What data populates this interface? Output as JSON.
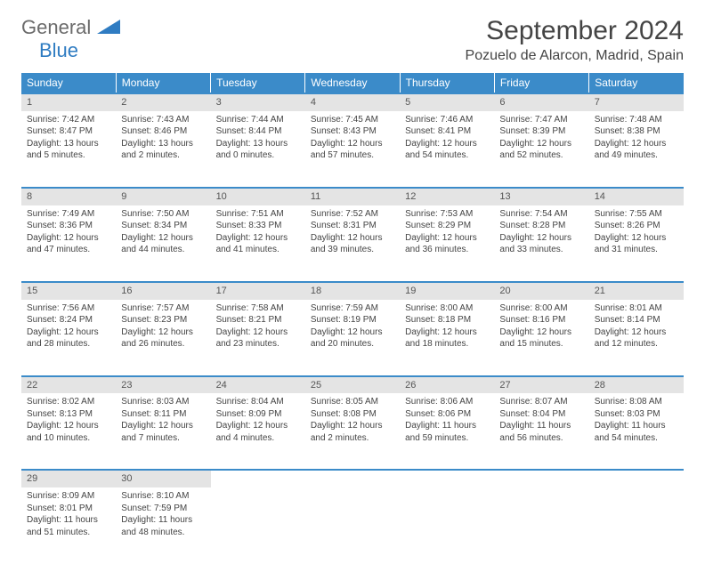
{
  "logo": {
    "word1": "General",
    "word2": "Blue"
  },
  "title": "September 2024",
  "location": "Pozuelo de Alarcon, Madrid, Spain",
  "daysOfWeek": [
    "Sunday",
    "Monday",
    "Tuesday",
    "Wednesday",
    "Thursday",
    "Friday",
    "Saturday"
  ],
  "colors": {
    "headerBg": "#3b8bc9",
    "dayNumBg": "#e4e4e4",
    "logoGray": "#6b6b6b",
    "logoBlue": "#2f7cc2"
  },
  "weeks": [
    [
      {
        "n": "1",
        "sr": "Sunrise: 7:42 AM",
        "ss": "Sunset: 8:47 PM",
        "d1": "Daylight: 13 hours",
        "d2": "and 5 minutes."
      },
      {
        "n": "2",
        "sr": "Sunrise: 7:43 AM",
        "ss": "Sunset: 8:46 PM",
        "d1": "Daylight: 13 hours",
        "d2": "and 2 minutes."
      },
      {
        "n": "3",
        "sr": "Sunrise: 7:44 AM",
        "ss": "Sunset: 8:44 PM",
        "d1": "Daylight: 13 hours",
        "d2": "and 0 minutes."
      },
      {
        "n": "4",
        "sr": "Sunrise: 7:45 AM",
        "ss": "Sunset: 8:43 PM",
        "d1": "Daylight: 12 hours",
        "d2": "and 57 minutes."
      },
      {
        "n": "5",
        "sr": "Sunrise: 7:46 AM",
        "ss": "Sunset: 8:41 PM",
        "d1": "Daylight: 12 hours",
        "d2": "and 54 minutes."
      },
      {
        "n": "6",
        "sr": "Sunrise: 7:47 AM",
        "ss": "Sunset: 8:39 PM",
        "d1": "Daylight: 12 hours",
        "d2": "and 52 minutes."
      },
      {
        "n": "7",
        "sr": "Sunrise: 7:48 AM",
        "ss": "Sunset: 8:38 PM",
        "d1": "Daylight: 12 hours",
        "d2": "and 49 minutes."
      }
    ],
    [
      {
        "n": "8",
        "sr": "Sunrise: 7:49 AM",
        "ss": "Sunset: 8:36 PM",
        "d1": "Daylight: 12 hours",
        "d2": "and 47 minutes."
      },
      {
        "n": "9",
        "sr": "Sunrise: 7:50 AM",
        "ss": "Sunset: 8:34 PM",
        "d1": "Daylight: 12 hours",
        "d2": "and 44 minutes."
      },
      {
        "n": "10",
        "sr": "Sunrise: 7:51 AM",
        "ss": "Sunset: 8:33 PM",
        "d1": "Daylight: 12 hours",
        "d2": "and 41 minutes."
      },
      {
        "n": "11",
        "sr": "Sunrise: 7:52 AM",
        "ss": "Sunset: 8:31 PM",
        "d1": "Daylight: 12 hours",
        "d2": "and 39 minutes."
      },
      {
        "n": "12",
        "sr": "Sunrise: 7:53 AM",
        "ss": "Sunset: 8:29 PM",
        "d1": "Daylight: 12 hours",
        "d2": "and 36 minutes."
      },
      {
        "n": "13",
        "sr": "Sunrise: 7:54 AM",
        "ss": "Sunset: 8:28 PM",
        "d1": "Daylight: 12 hours",
        "d2": "and 33 minutes."
      },
      {
        "n": "14",
        "sr": "Sunrise: 7:55 AM",
        "ss": "Sunset: 8:26 PM",
        "d1": "Daylight: 12 hours",
        "d2": "and 31 minutes."
      }
    ],
    [
      {
        "n": "15",
        "sr": "Sunrise: 7:56 AM",
        "ss": "Sunset: 8:24 PM",
        "d1": "Daylight: 12 hours",
        "d2": "and 28 minutes."
      },
      {
        "n": "16",
        "sr": "Sunrise: 7:57 AM",
        "ss": "Sunset: 8:23 PM",
        "d1": "Daylight: 12 hours",
        "d2": "and 26 minutes."
      },
      {
        "n": "17",
        "sr": "Sunrise: 7:58 AM",
        "ss": "Sunset: 8:21 PM",
        "d1": "Daylight: 12 hours",
        "d2": "and 23 minutes."
      },
      {
        "n": "18",
        "sr": "Sunrise: 7:59 AM",
        "ss": "Sunset: 8:19 PM",
        "d1": "Daylight: 12 hours",
        "d2": "and 20 minutes."
      },
      {
        "n": "19",
        "sr": "Sunrise: 8:00 AM",
        "ss": "Sunset: 8:18 PM",
        "d1": "Daylight: 12 hours",
        "d2": "and 18 minutes."
      },
      {
        "n": "20",
        "sr": "Sunrise: 8:00 AM",
        "ss": "Sunset: 8:16 PM",
        "d1": "Daylight: 12 hours",
        "d2": "and 15 minutes."
      },
      {
        "n": "21",
        "sr": "Sunrise: 8:01 AM",
        "ss": "Sunset: 8:14 PM",
        "d1": "Daylight: 12 hours",
        "d2": "and 12 minutes."
      }
    ],
    [
      {
        "n": "22",
        "sr": "Sunrise: 8:02 AM",
        "ss": "Sunset: 8:13 PM",
        "d1": "Daylight: 12 hours",
        "d2": "and 10 minutes."
      },
      {
        "n": "23",
        "sr": "Sunrise: 8:03 AM",
        "ss": "Sunset: 8:11 PM",
        "d1": "Daylight: 12 hours",
        "d2": "and 7 minutes."
      },
      {
        "n": "24",
        "sr": "Sunrise: 8:04 AM",
        "ss": "Sunset: 8:09 PM",
        "d1": "Daylight: 12 hours",
        "d2": "and 4 minutes."
      },
      {
        "n": "25",
        "sr": "Sunrise: 8:05 AM",
        "ss": "Sunset: 8:08 PM",
        "d1": "Daylight: 12 hours",
        "d2": "and 2 minutes."
      },
      {
        "n": "26",
        "sr": "Sunrise: 8:06 AM",
        "ss": "Sunset: 8:06 PM",
        "d1": "Daylight: 11 hours",
        "d2": "and 59 minutes."
      },
      {
        "n": "27",
        "sr": "Sunrise: 8:07 AM",
        "ss": "Sunset: 8:04 PM",
        "d1": "Daylight: 11 hours",
        "d2": "and 56 minutes."
      },
      {
        "n": "28",
        "sr": "Sunrise: 8:08 AM",
        "ss": "Sunset: 8:03 PM",
        "d1": "Daylight: 11 hours",
        "d2": "and 54 minutes."
      }
    ],
    [
      {
        "n": "29",
        "sr": "Sunrise: 8:09 AM",
        "ss": "Sunset: 8:01 PM",
        "d1": "Daylight: 11 hours",
        "d2": "and 51 minutes."
      },
      {
        "n": "30",
        "sr": "Sunrise: 8:10 AM",
        "ss": "Sunset: 7:59 PM",
        "d1": "Daylight: 11 hours",
        "d2": "and 48 minutes."
      },
      null,
      null,
      null,
      null,
      null
    ]
  ]
}
